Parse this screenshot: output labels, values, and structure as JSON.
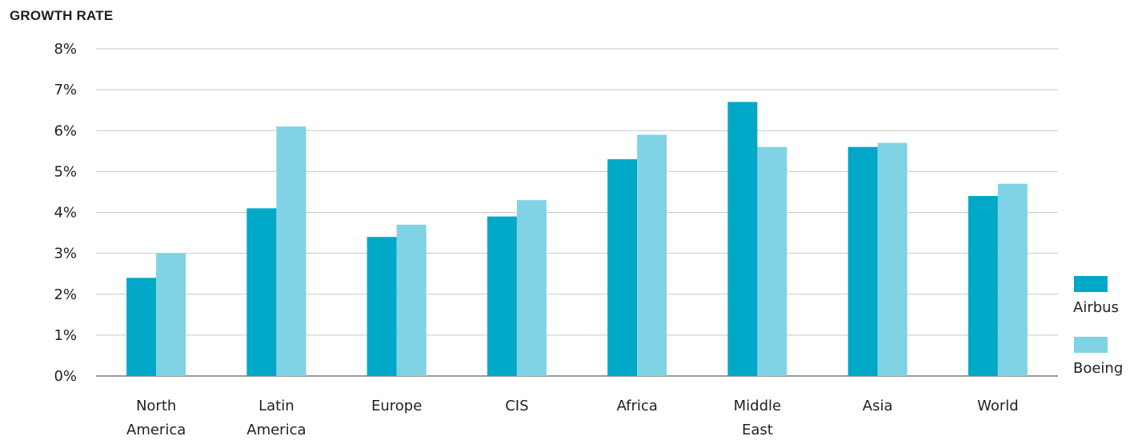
{
  "chart_data": {
    "type": "bar",
    "title": "GROWTH RATE",
    "categories": [
      "North\nAmerica",
      "Latin\nAmerica",
      "Europe",
      "CIS",
      "Africa",
      "Middle\nEast",
      "Asia",
      "World"
    ],
    "series": [
      {
        "name": "Airbus",
        "values": [
          2.4,
          4.1,
          3.4,
          3.9,
          5.3,
          6.7,
          5.6,
          4.4
        ],
        "color": "#00a8c8"
      },
      {
        "name": "Boeing",
        "values": [
          3.0,
          6.1,
          3.7,
          4.3,
          5.9,
          5.6,
          5.7,
          4.7
        ],
        "color": "#7fd3e4"
      }
    ],
    "ylim": [
      0,
      8
    ],
    "yticks": [
      "0%",
      "1%",
      "2%",
      "3%",
      "4%",
      "5%",
      "6%",
      "7%",
      "8%"
    ],
    "grid": true,
    "legend_position": "right"
  }
}
